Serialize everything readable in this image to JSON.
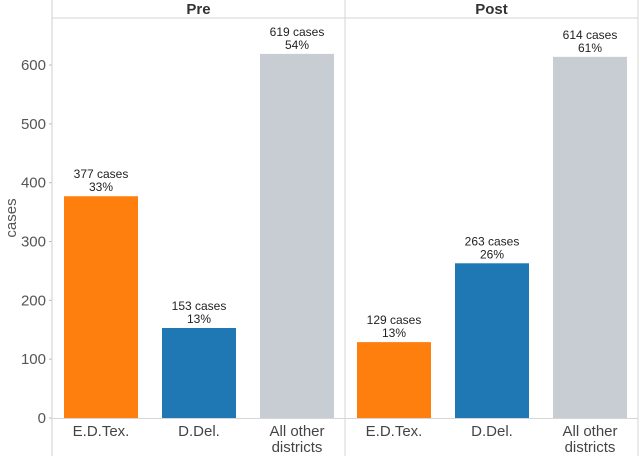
{
  "chart_data": {
    "type": "bar",
    "ylabel": "cases",
    "ylim": [
      0,
      680
    ],
    "yticks": [
      0,
      100,
      200,
      300,
      400,
      500,
      600
    ],
    "grid": false,
    "colors": {
      "E.D.Tex.": "#ff7f0e",
      "D.Del.": "#1f77b4",
      "All other districts": "#c7cdd2"
    },
    "panels": [
      {
        "title": "Pre",
        "categories": [
          "E.D.Tex.",
          "D.Del.",
          "All other districts"
        ],
        "category_lines": [
          [
            "E.D.Tex."
          ],
          [
            "D.Del."
          ],
          [
            "All other",
            "districts"
          ]
        ],
        "values": [
          377,
          153,
          619
        ],
        "value_labels": [
          "377 cases",
          "153 cases",
          "619 cases"
        ],
        "percent_labels": [
          "33%",
          "13%",
          "54%"
        ]
      },
      {
        "title": "Post",
        "categories": [
          "E.D.Tex.",
          "D.Del.",
          "All other districts"
        ],
        "category_lines": [
          [
            "E.D.Tex."
          ],
          [
            "D.Del."
          ],
          [
            "All other",
            "districts"
          ]
        ],
        "values": [
          129,
          263,
          614
        ],
        "value_labels": [
          "129 cases",
          "263 cases",
          "614 cases"
        ],
        "percent_labels": [
          "13%",
          "26%",
          "61%"
        ]
      }
    ]
  }
}
